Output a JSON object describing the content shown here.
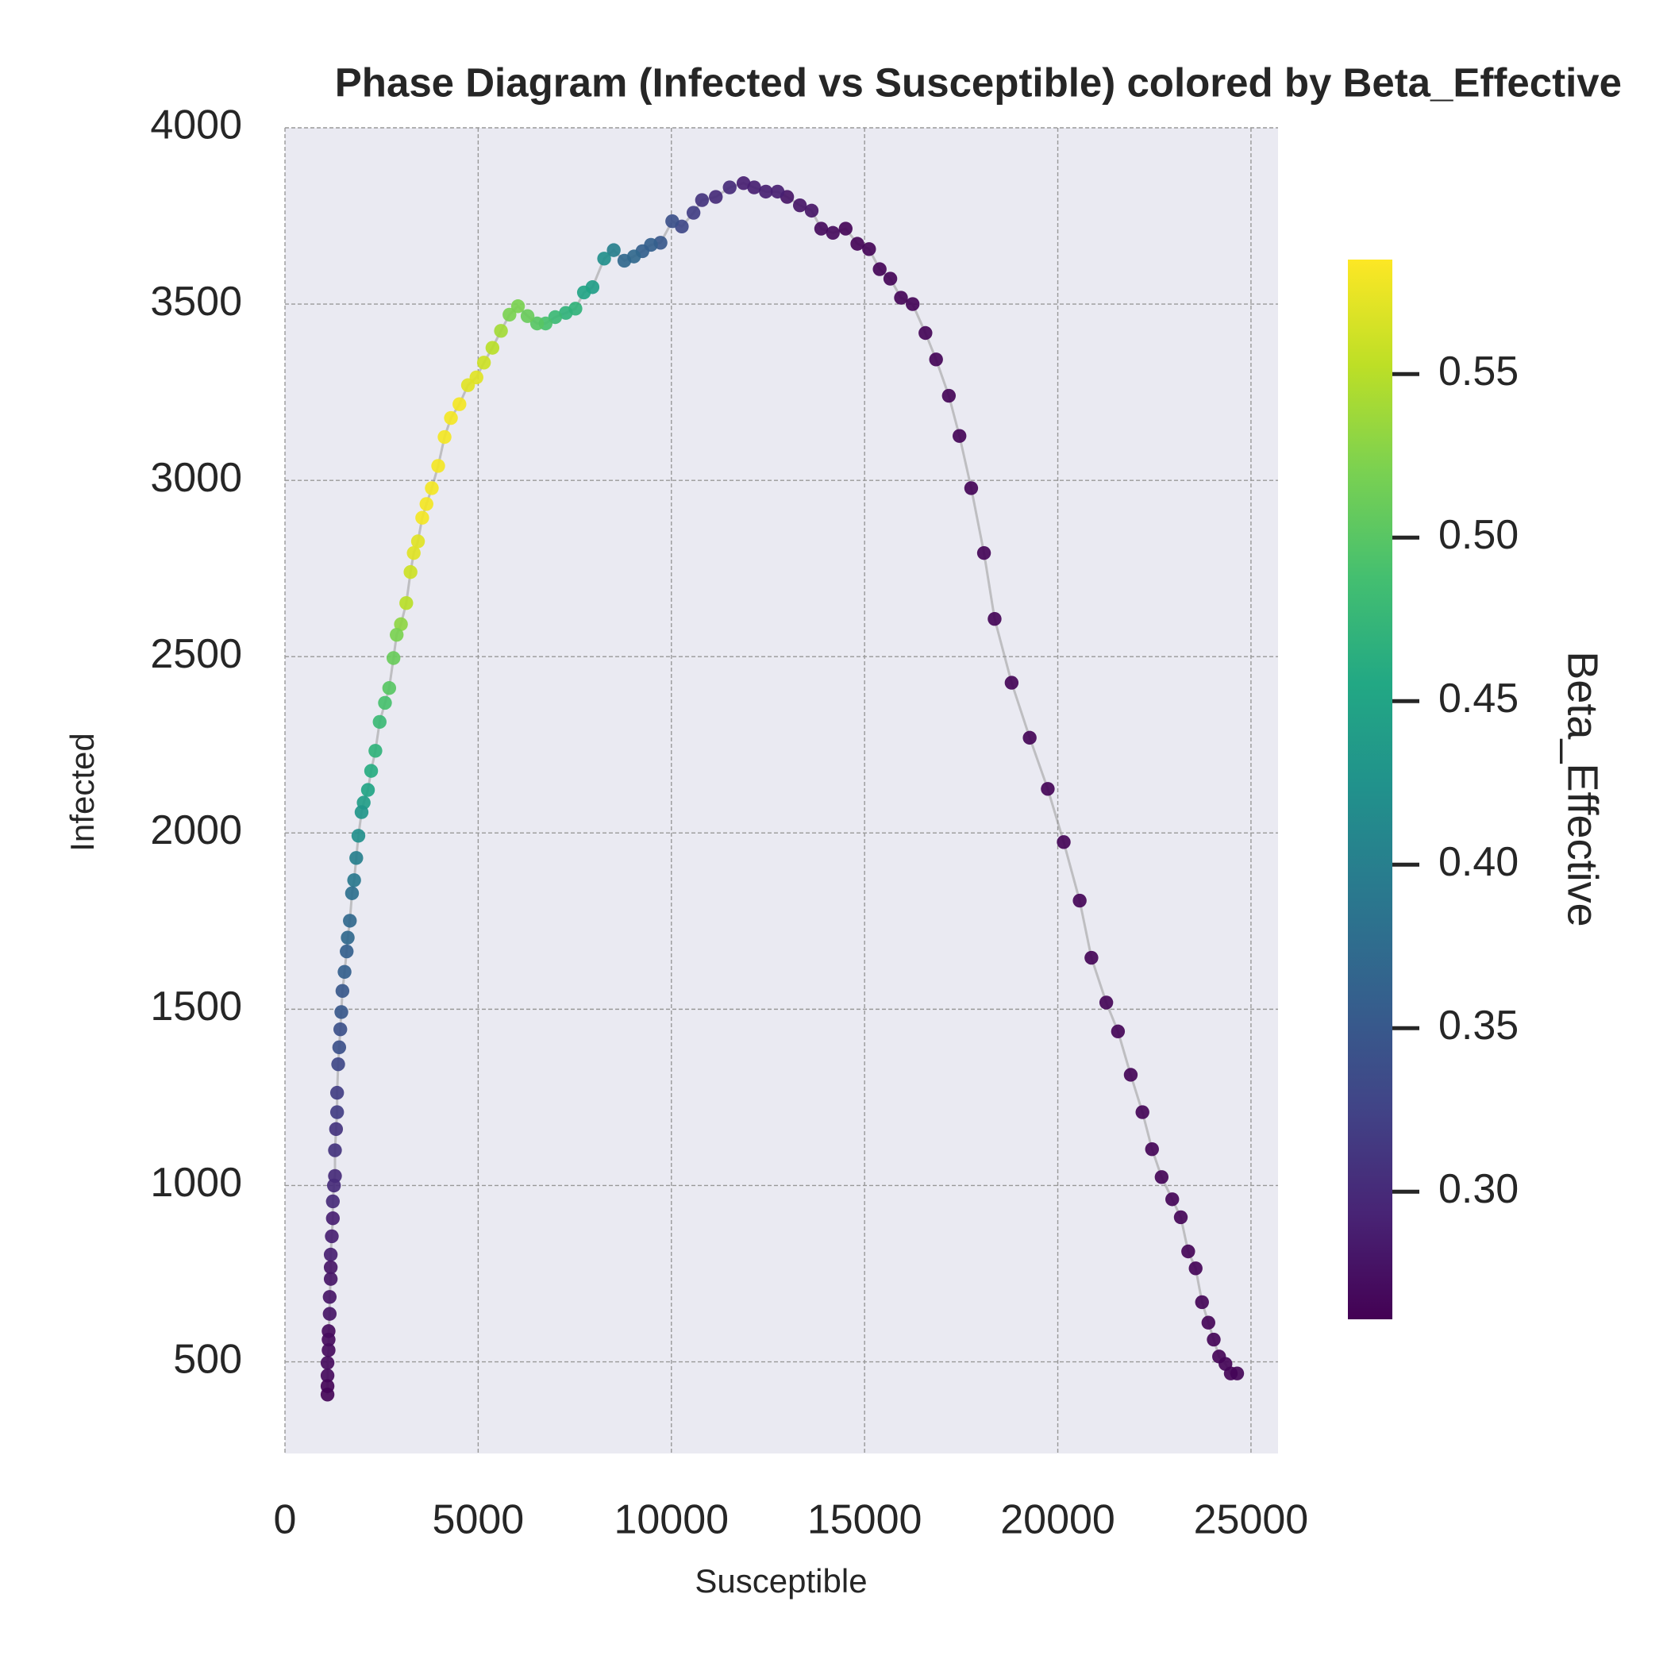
{
  "chart_data": {
    "type": "scatter",
    "title": "Phase Diagram (Infected vs Susceptible) colored by Beta_Effective",
    "x_label": "Susceptible",
    "y_label": "Infected",
    "xlim": [
      0,
      25700
    ],
    "ylim": [
      240,
      4000
    ],
    "xticks": [
      0,
      5000,
      10000,
      15000,
      20000,
      25000
    ],
    "yticks": [
      500,
      1000,
      1500,
      2000,
      2500,
      3000,
      3500,
      4000
    ],
    "grid": true,
    "line_color": "#999999",
    "colormap": "viridis",
    "colorbar_label": "Beta_Effective",
    "clim": [
      0.261,
      0.585
    ],
    "cticks": [
      {
        "value": 0.3,
        "label": "0.30"
      },
      0.35,
      {
        "value": 0.4,
        "label": "0.40"
      },
      0.45,
      {
        "value": 0.5,
        "label": "0.50"
      },
      0.55
    ],
    "x": [
      24642,
      24477,
      24339,
      24174,
      24036,
      23898,
      23733,
      23568,
      23375,
      23183,
      22962,
      22687,
      22439,
      22191,
      21888,
      21558,
      21255,
      20870,
      20567,
      20154,
      19741,
      19273,
      18805,
      18365,
      18090,
      17759,
      17456,
      17181,
      16850,
      16575,
      16244,
      15942,
      15666,
      15391,
      15116,
      14813,
      14510,
      14180,
      13877,
      13630,
      13326,
      12996,
      12748,
      12445,
      12142,
      11867,
      11509,
      11150,
      10793,
      10573,
      10270,
      10022,
      9719,
      9471,
      9251,
      9031,
      8783,
      8508,
      8260,
      7958,
      7737,
      7517,
      7269,
      6993,
      6745,
      6525,
      6278,
      6030,
      5810,
      5590,
      5369,
      5149,
      4956,
      4736,
      4515,
      4295,
      4130,
      3965,
      3800,
      3662,
      3552,
      3442,
      3332,
      3249,
      3139,
      3001,
      2891,
      2808,
      2698,
      2588,
      2450,
      2340,
      2230,
      2147,
      2037,
      1982,
      1900,
      1845,
      1790,
      1735,
      1679,
      1624,
      1597,
      1542,
      1487,
      1459,
      1432,
      1404,
      1377,
      1349,
      1349,
      1322,
      1294,
      1294,
      1267,
      1239,
      1239,
      1212,
      1184,
      1184,
      1184,
      1157,
      1157,
      1129,
      1129,
      1129,
      1101,
      1101,
      1101,
      1101
    ],
    "values": [
      467,
      467,
      494,
      515,
      563,
      611,
      669,
      765,
      813,
      910,
      961,
      1024,
      1103,
      1208,
      1314,
      1437,
      1519,
      1646,
      1808,
      1974,
      2125,
      2270,
      2426,
      2607,
      2794,
      2978,
      3126,
      3240,
      3343,
      3418,
      3500,
      3518,
      3572,
      3599,
      3656,
      3671,
      3714,
      3702,
      3714,
      3765,
      3780,
      3804,
      3819,
      3819,
      3831,
      3843,
      3831,
      3804,
      3795,
      3759,
      3720,
      3735,
      3674,
      3668,
      3650,
      3635,
      3623,
      3653,
      3629,
      3548,
      3533,
      3487,
      3475,
      3463,
      3445,
      3445,
      3466,
      3494,
      3470,
      3424,
      3376,
      3334,
      3292,
      3270,
      3216,
      3177,
      3123,
      3041,
      2978,
      2933,
      2894,
      2827,
      2794,
      2740,
      2652,
      2592,
      2562,
      2496,
      2411,
      2369,
      2315,
      2233,
      2176,
      2122,
      2086,
      2059,
      1992,
      1929,
      1866,
      1829,
      1751,
      1703,
      1664,
      1606,
      1552,
      1492,
      1443,
      1392,
      1344,
      1263,
      1208,
      1160,
      1100,
      1027,
      1000,
      955,
      907,
      856,
      804,
      768,
      735,
      684,
      636,
      587,
      563,
      533,
      497,
      461,
      431,
      407
    ],
    "color_values": [
      0.265,
      0.265,
      0.265,
      0.265,
      0.265,
      0.265,
      0.265,
      0.265,
      0.265,
      0.265,
      0.265,
      0.265,
      0.265,
      0.265,
      0.265,
      0.265,
      0.265,
      0.265,
      0.265,
      0.265,
      0.265,
      0.265,
      0.265,
      0.265,
      0.265,
      0.265,
      0.265,
      0.265,
      0.265,
      0.265,
      0.265,
      0.265,
      0.265,
      0.265,
      0.265,
      0.265,
      0.265,
      0.27,
      0.27,
      0.28,
      0.28,
      0.28,
      0.29,
      0.29,
      0.29,
      0.29,
      0.3,
      0.3,
      0.31,
      0.32,
      0.33,
      0.34,
      0.35,
      0.36,
      0.36,
      0.37,
      0.37,
      0.4,
      0.42,
      0.44,
      0.45,
      0.47,
      0.47,
      0.48,
      0.49,
      0.5,
      0.51,
      0.52,
      0.52,
      0.54,
      0.55,
      0.56,
      0.57,
      0.57,
      0.58,
      0.58,
      0.58,
      0.58,
      0.58,
      0.58,
      0.58,
      0.57,
      0.57,
      0.56,
      0.55,
      0.53,
      0.52,
      0.51,
      0.5,
      0.49,
      0.48,
      0.47,
      0.46,
      0.45,
      0.44,
      0.43,
      0.42,
      0.4,
      0.39,
      0.38,
      0.37,
      0.37,
      0.36,
      0.36,
      0.35,
      0.35,
      0.34,
      0.34,
      0.33,
      0.32,
      0.32,
      0.31,
      0.31,
      0.3,
      0.3,
      0.3,
      0.29,
      0.29,
      0.29,
      0.28,
      0.28,
      0.28,
      0.28,
      0.27,
      0.27,
      0.27,
      0.27,
      0.27,
      0.265,
      0.265
    ]
  }
}
